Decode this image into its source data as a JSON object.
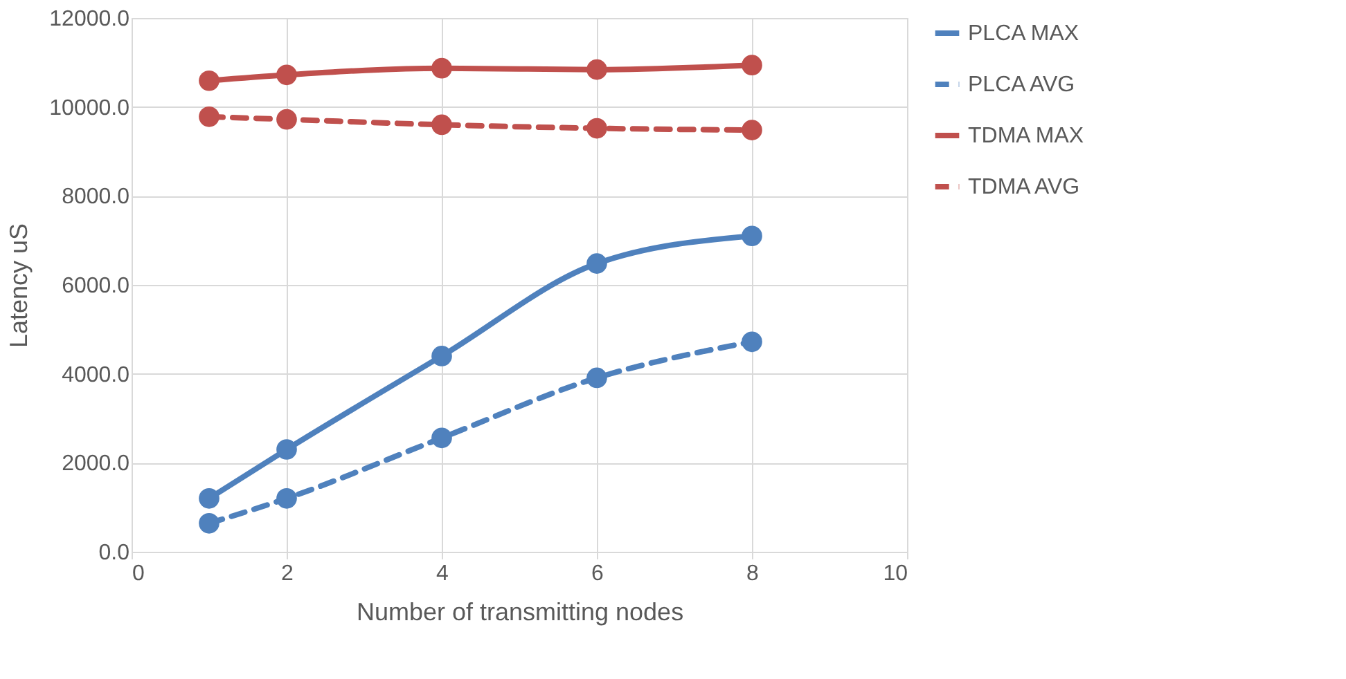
{
  "chart_data": {
    "type": "line",
    "xlabel": "Number of transmitting nodes",
    "ylabel": "Latency uS",
    "x": [
      1,
      2,
      4,
      6,
      8
    ],
    "series": [
      {
        "name": "PLCA MAX",
        "color": "#4f81bd",
        "line_style": "solid",
        "values": [
          1200,
          2300,
          4400,
          6480,
          7100
        ]
      },
      {
        "name": "PLCA AVG",
        "color": "#4f81bd",
        "line_style": "dashed",
        "values": [
          640,
          1200,
          2560,
          3910,
          4720
        ]
      },
      {
        "name": "TDMA MAX",
        "color": "#c0504d",
        "line_style": "solid",
        "values": [
          10590,
          10720,
          10870,
          10840,
          10940
        ]
      },
      {
        "name": "TDMA AVG",
        "color": "#c0504d",
        "line_style": "dashed",
        "values": [
          9780,
          9720,
          9600,
          9520,
          9480
        ]
      }
    ],
    "xlim": [
      0,
      10
    ],
    "xticks": [
      0,
      2,
      4,
      6,
      8,
      10
    ],
    "ylim": [
      0,
      12000
    ],
    "yticks": [
      {
        "value": 0,
        "label": "0.0"
      },
      {
        "value": 2000,
        "label": "2000.0"
      },
      {
        "value": 4000,
        "label": "4000.0"
      },
      {
        "value": 6000,
        "label": "6000.0"
      },
      {
        "value": 8000,
        "label": "8000.0"
      },
      {
        "value": 10000,
        "label": "10000.0"
      },
      {
        "value": 12000,
        "label": "12000.0"
      }
    ],
    "grid": true,
    "legend": "right",
    "marker": "circle"
  }
}
